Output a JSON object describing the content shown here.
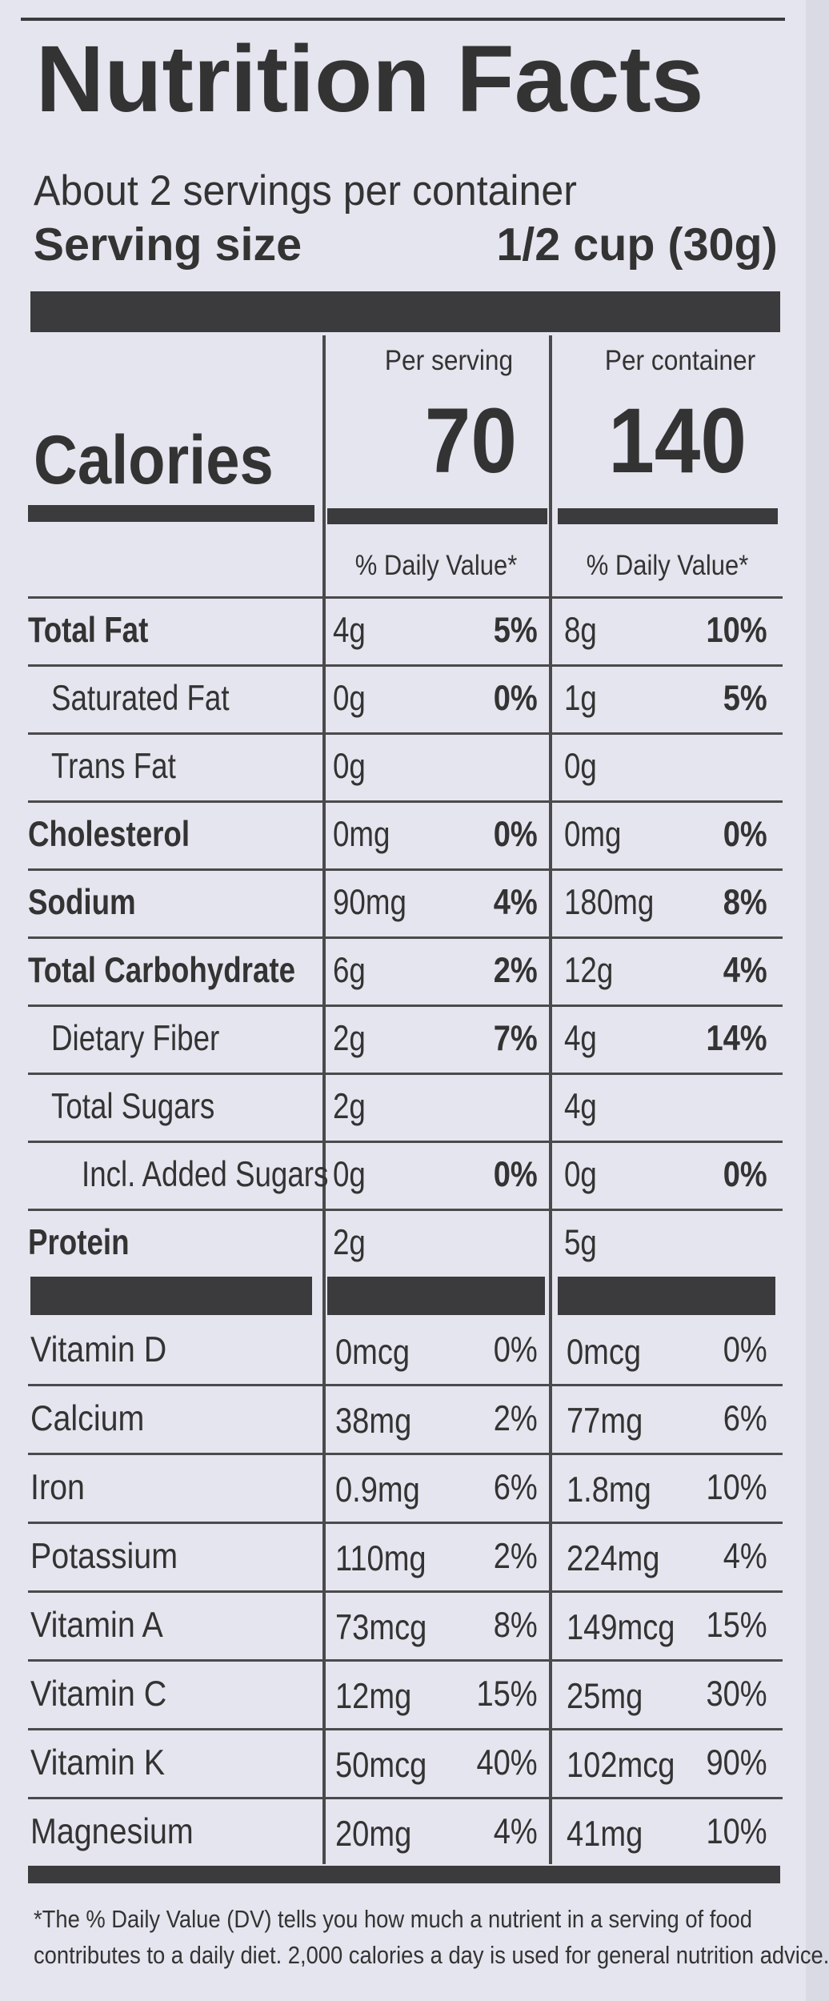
{
  "header": {
    "title": "Nutrition Facts",
    "servings": "About 2 servings per container",
    "serving_size_label": "Serving size",
    "serving_size_value": "1/2 cup (30g)"
  },
  "calories": {
    "label": "Calories",
    "columns": [
      {
        "heading": "Per serving",
        "value": "70"
      },
      {
        "heading": "Per container",
        "value": "140"
      }
    ]
  },
  "daily_value_headings": [
    "% Daily Value*",
    "% Daily Value*"
  ],
  "nutrients": [
    {
      "name": "Total Fat",
      "bold": true,
      "indent": 0,
      "serving": [
        "4g",
        "5%"
      ],
      "container": [
        "8g",
        "10%"
      ]
    },
    {
      "name": "Saturated Fat",
      "bold": false,
      "indent": 1,
      "serving": [
        "0g",
        "0%"
      ],
      "container": [
        "1g",
        "5%"
      ]
    },
    {
      "name": "Trans Fat",
      "bold": false,
      "indent": 1,
      "serving": [
        "0g"
      ],
      "container": [
        "0g"
      ]
    },
    {
      "name": "Cholesterol",
      "bold": true,
      "indent": 0,
      "serving": [
        "0mg",
        "0%"
      ],
      "container": [
        "0mg",
        "0%"
      ]
    },
    {
      "name": "Sodium",
      "bold": true,
      "indent": 0,
      "serving": [
        "90mg",
        "4%"
      ],
      "container": [
        "180mg",
        "8%"
      ]
    },
    {
      "name": "Total Carbohydrate",
      "bold": true,
      "indent": 0,
      "serving": [
        "6g",
        "2%"
      ],
      "container": [
        "12g",
        "4%"
      ]
    },
    {
      "name": "Dietary Fiber",
      "bold": false,
      "indent": 1,
      "serving": [
        "2g",
        "7%"
      ],
      "container": [
        "4g",
        "14%"
      ]
    },
    {
      "name": "Total Sugars",
      "bold": false,
      "indent": 1,
      "serving": [
        "2g"
      ],
      "container": [
        "4g"
      ]
    },
    {
      "name": "Incl. Added Sugars",
      "bold": false,
      "indent": 2,
      "serving": [
        "0g",
        "0%"
      ],
      "container": [
        "0g",
        "0%"
      ]
    },
    {
      "name": "Protein",
      "bold": true,
      "indent": 0,
      "serving": [
        "2g"
      ],
      "container": [
        "5g"
      ]
    }
  ],
  "vitamins": [
    {
      "name": "Vitamin D",
      "serving": [
        "0mcg",
        "0%"
      ],
      "container": [
        "0mcg",
        "0%"
      ]
    },
    {
      "name": "Calcium",
      "serving": [
        "38mg",
        "2%"
      ],
      "container": [
        "77mg",
        "6%"
      ]
    },
    {
      "name": "Iron",
      "serving": [
        "0.9mg",
        "6%"
      ],
      "container": [
        "1.8mg",
        "10%"
      ]
    },
    {
      "name": "Potassium",
      "serving": [
        "110mg",
        "2%"
      ],
      "container": [
        "224mg",
        "4%"
      ]
    },
    {
      "name": "Vitamin A",
      "serving": [
        "73mcg",
        "8%"
      ],
      "container": [
        "149mcg",
        "15%"
      ]
    },
    {
      "name": "Vitamin C",
      "serving": [
        "12mg",
        "15%"
      ],
      "container": [
        "25mg",
        "30%"
      ]
    },
    {
      "name": "Vitamin K",
      "serving": [
        "50mcg",
        "40%"
      ],
      "container": [
        "102mcg",
        "90%"
      ]
    },
    {
      "name": "Magnesium",
      "serving": [
        "20mg",
        "4%"
      ],
      "container": [
        "41mg",
        "10%"
      ]
    }
  ],
  "footnote": [
    "*The % Daily Value (DV) tells you how much a nutrient in a serving of food",
    "contributes to a daily diet. 2,000 calories a day is used for general nutrition advice."
  ]
}
